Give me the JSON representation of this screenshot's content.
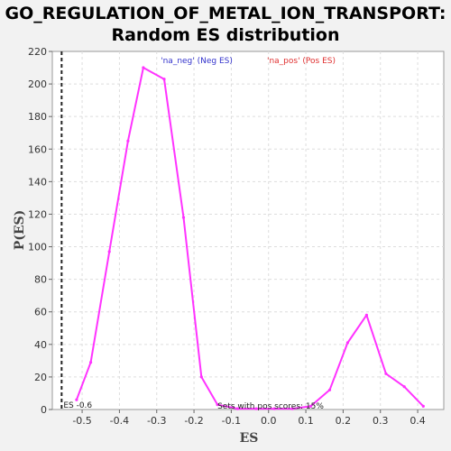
{
  "chart_data": {
    "type": "line",
    "title_line1": "GO_REGULATION_OF_METAL_ION_TRANSPORT:",
    "title_line2": "Random ES distribution",
    "xlabel": "ES",
    "ylabel": "P(ES)",
    "xlim": [
      -0.58,
      0.47
    ],
    "ylim": [
      0,
      220
    ],
    "x_ticks": [
      -0.5,
      -0.4,
      -0.3,
      -0.2,
      -0.1,
      0.0,
      0.1,
      0.2,
      0.3,
      0.4
    ],
    "x_tick_labels": [
      "-0.5",
      "-0.4",
      "-0.3",
      "-0.2",
      "-0.1",
      "0.0",
      "0.1",
      "0.2",
      "0.3",
      "0.4"
    ],
    "y_ticks": [
      0,
      20,
      40,
      60,
      80,
      100,
      120,
      140,
      160,
      180,
      200,
      220
    ],
    "y_tick_labels": [
      "0",
      "20",
      "40",
      "60",
      "80",
      "100",
      "120",
      "140",
      "160",
      "180",
      "200",
      "220"
    ],
    "grid": true,
    "series": [
      {
        "name": "Random ES distribution",
        "color": "#ff33ff",
        "x": [
          -0.515,
          -0.477,
          -0.427,
          -0.377,
          -0.336,
          -0.28,
          -0.228,
          -0.18,
          -0.137,
          -0.083,
          -0.033,
          0.016,
          0.064,
          0.113,
          0.164,
          0.212,
          0.263,
          0.315,
          0.364,
          0.415
        ],
        "y": [
          6,
          29,
          97,
          165,
          210,
          203,
          118,
          20,
          3,
          0.5,
          0.5,
          0.5,
          0.5,
          2,
          12,
          41,
          58,
          22,
          14,
          2
        ]
      }
    ],
    "es_line": {
      "x": -0.555,
      "label": "ES -0.6"
    },
    "legend": [
      {
        "text": "'na_neg' (Neg ES)",
        "color": "#3333cc"
      },
      {
        "text": "'na_pos' (Pos ES)",
        "color": "#e03030"
      }
    ],
    "annotation": "Sets with pos scores: 15%"
  }
}
